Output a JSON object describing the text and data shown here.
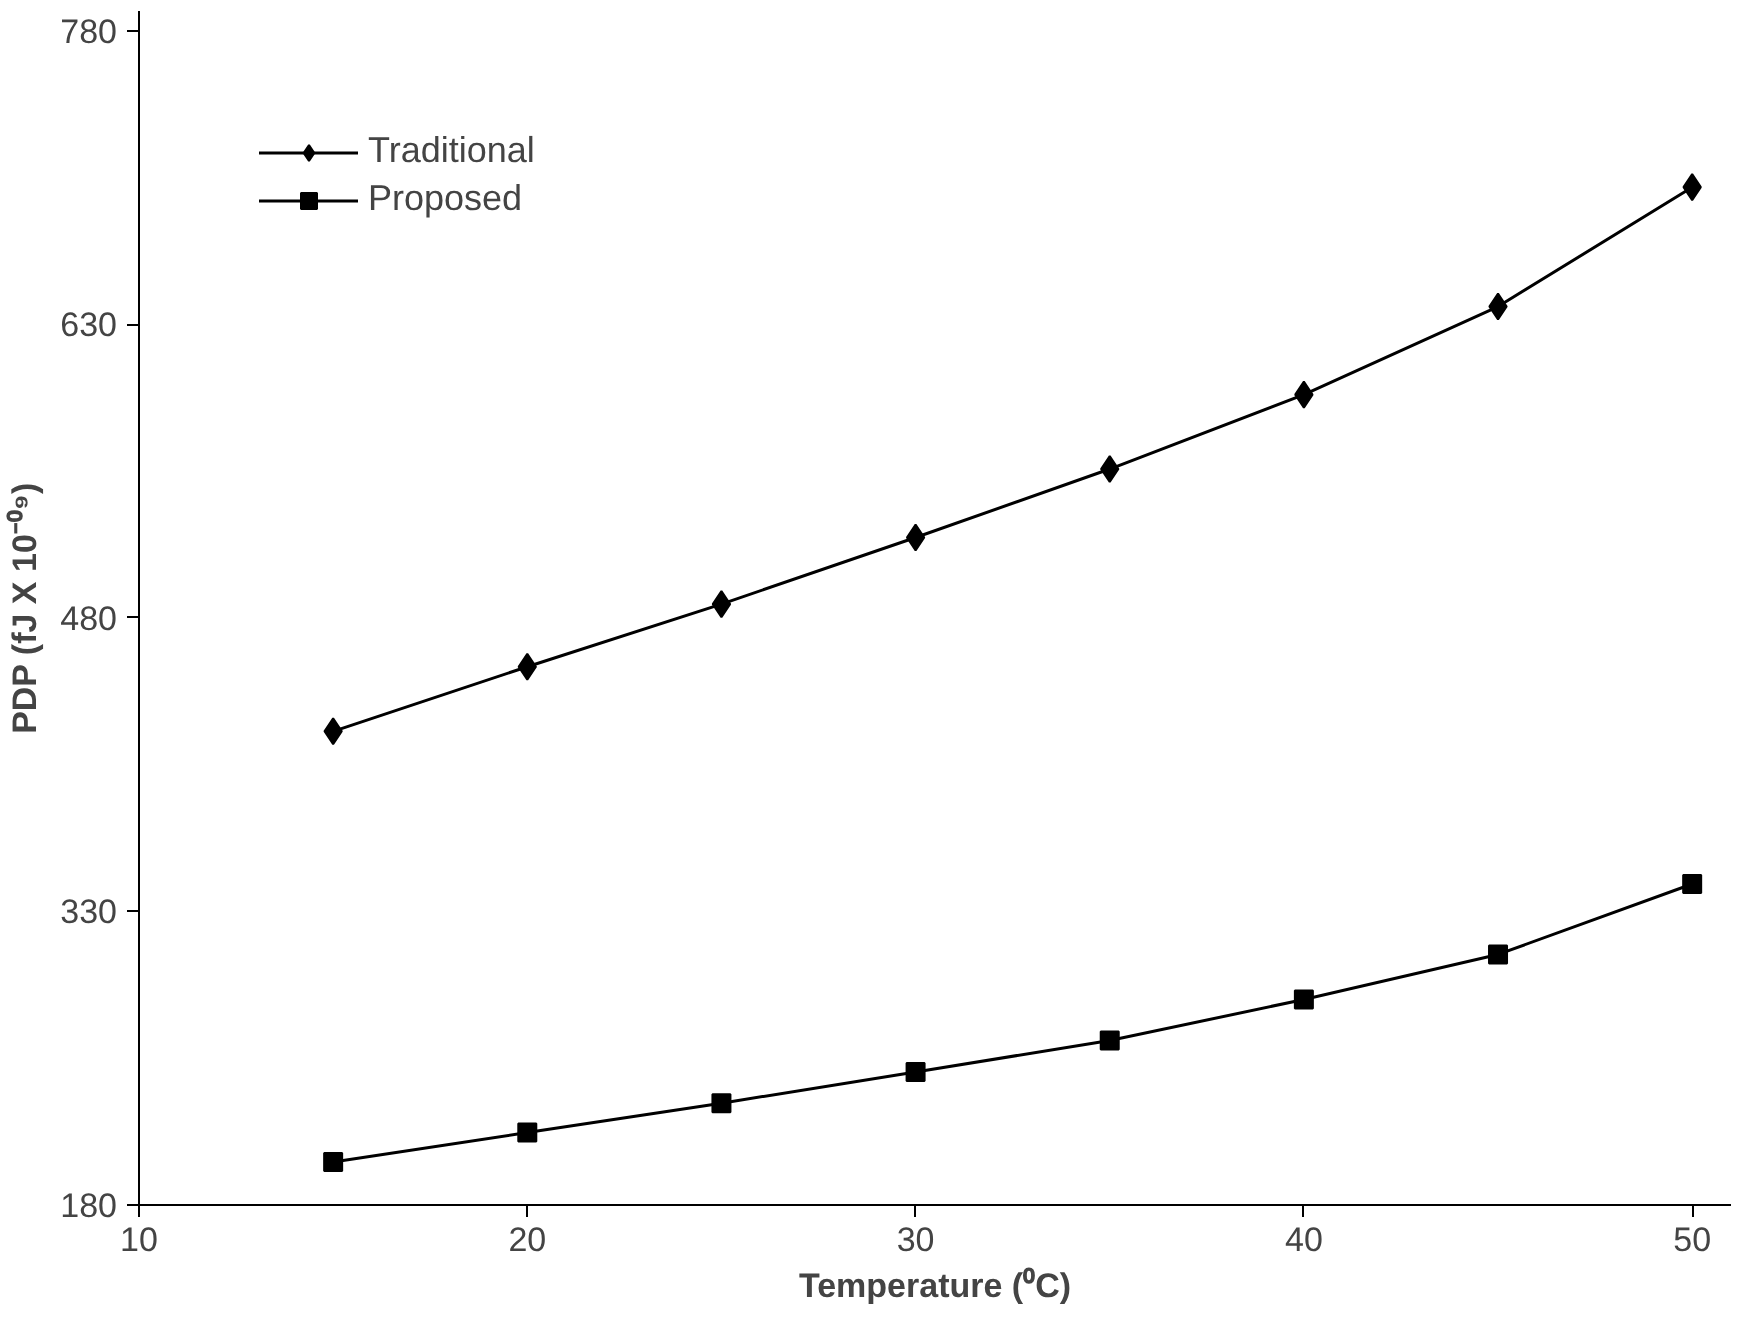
{
  "chart_data": {
    "type": "line",
    "xlabel": "Temperature (⁰C)",
    "ylabel": "PDP (fJ X 10⁻⁰⁹)",
    "x": [
      15,
      20,
      25,
      30,
      35,
      40,
      45,
      50
    ],
    "series": [
      {
        "name": "Traditional",
        "color": "#000000",
        "marker": "diamond",
        "values": [
          422,
          455,
          487,
          521,
          556,
          594,
          639,
          700
        ]
      },
      {
        "name": "Proposed",
        "color": "#000000",
        "marker": "square",
        "values": [
          202,
          217,
          232,
          248,
          264,
          285,
          308,
          344
        ]
      }
    ],
    "xlim": [
      10,
      51
    ],
    "ylim": [
      180,
      790
    ],
    "xticks": [
      10,
      20,
      30,
      40,
      50
    ],
    "yticks": [
      180,
      330,
      480,
      630,
      780
    ],
    "grid": false,
    "legend": "top left",
    "line_style": "solid"
  }
}
